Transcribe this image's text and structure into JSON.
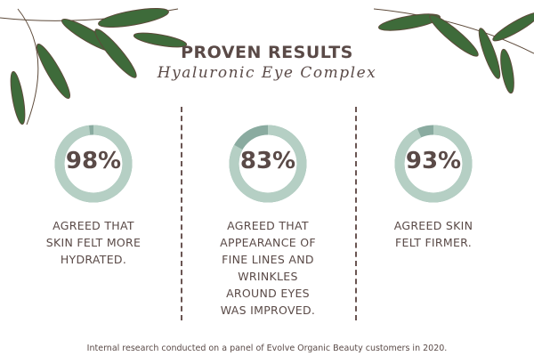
{
  "header": {
    "title": "PROVEN RESULTS",
    "subtitle": "Hyaluronic Eye Complex"
  },
  "colors": {
    "ring_fill": "#b5cfc4",
    "ring_rest": "#8aaba0",
    "text": "#5a4a47",
    "leaf": "#3e6b3a"
  },
  "stats": [
    {
      "value": 98,
      "label": "98%",
      "description": "AGREED THAT SKIN FELT MORE HYDRATED."
    },
    {
      "value": 83,
      "label": "83%",
      "description": "AGREED THAT APPEARANCE OF FINE LINES AND WRINKLES AROUND EYES WAS IMPROVED."
    },
    {
      "value": 93,
      "label": "93%",
      "description": "AGREED SKIN FELT FIRMER."
    }
  ],
  "footer": "Internal research conducted on a panel of Evolve Organic Beauty customers in 2020."
}
